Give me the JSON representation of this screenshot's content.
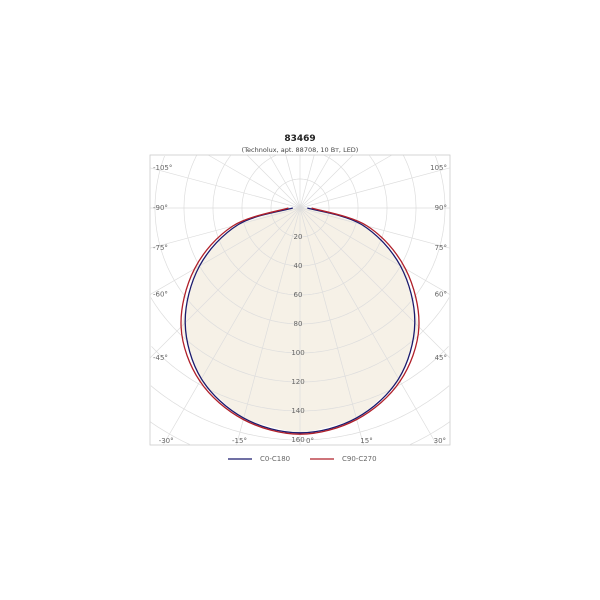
{
  "chart_data": {
    "type": "polar",
    "title": "83469",
    "subtitle": "(Technolux, apt. 88708, 10 Bт, LED)",
    "radial_ticks": [
      20,
      40,
      60,
      80,
      100,
      120,
      140,
      160
    ],
    "radial_tick_labels": [
      "20",
      "40",
      "60",
      "80",
      "100",
      "120",
      "140",
      "160"
    ],
    "angle_ticks": [
      -105,
      -90,
      -75,
      -60,
      -45,
      -30,
      -15,
      0,
      15,
      30,
      45,
      60,
      75,
      90,
      105
    ],
    "angle_tick_labels": [
      "-105°",
      "-90°",
      "-75°",
      "-60°",
      "-45°",
      "-30°",
      "-15°",
      "0°",
      "15°",
      "30°",
      "45°",
      "60°",
      "75°",
      "90°",
      "105°"
    ],
    "grid": true,
    "legend_position": "bottom",
    "angles": [
      -90,
      -75,
      -60,
      -45,
      -30,
      -15,
      0,
      15,
      30,
      45,
      60,
      75,
      90
    ],
    "series": [
      {
        "name": "C0-C180",
        "color": "#1a1a6e",
        "values": [
          5,
          44,
          80,
          112,
          136,
          150,
          155,
          150,
          136,
          112,
          80,
          44,
          5
        ]
      },
      {
        "name": "C90-C270",
        "color": "#b0202a",
        "values": [
          8,
          48,
          84,
          116,
          138,
          151,
          156,
          151,
          138,
          116,
          84,
          48,
          8
        ]
      }
    ],
    "fill_color": "#f6f1e7"
  }
}
